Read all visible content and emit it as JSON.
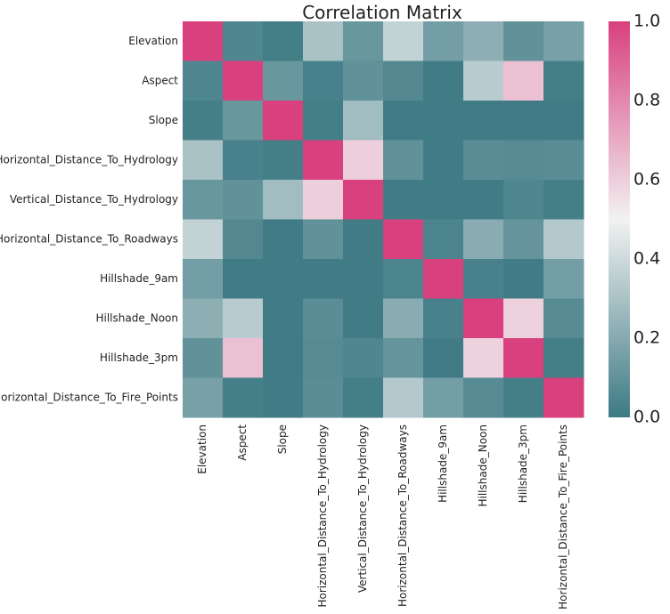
{
  "chart_data": {
    "type": "heatmap",
    "title": "Correlation Matrix",
    "rows": [
      "Elevation",
      "Aspect",
      "Slope",
      "Horizontal_Distance_To_Hydrology",
      "Vertical_Distance_To_Hydrology",
      "Horizontal_Distance_To_Roadways",
      "Hillshade_9am",
      "Hillshade_Noon",
      "Hillshade_3pm",
      "Horizontal_Distance_To_Fire_Points"
    ],
    "columns": [
      "Elevation",
      "Aspect",
      "Slope",
      "Horizontal_Distance_To_Hydrology",
      "Vertical_Distance_To_Hydrology",
      "Horizontal_Distance_To_Roadways",
      "Hillshade_9am",
      "Hillshade_Noon",
      "Hillshade_3pm",
      "Horizontal_Distance_To_Fire_Points"
    ],
    "values": [
      [
        1.0,
        0.05,
        0.02,
        0.3,
        0.12,
        0.37,
        0.15,
        0.22,
        0.1,
        0.16
      ],
      [
        0.05,
        1.0,
        0.12,
        0.03,
        0.1,
        0.06,
        0.01,
        0.34,
        0.64,
        0.02
      ],
      [
        0.02,
        0.12,
        1.0,
        0.02,
        0.28,
        0.01,
        0.01,
        0.01,
        0.01,
        0.01
      ],
      [
        0.3,
        0.03,
        0.02,
        1.0,
        0.6,
        0.1,
        0.01,
        0.08,
        0.07,
        0.08
      ],
      [
        0.12,
        0.1,
        0.28,
        0.6,
        1.0,
        0.01,
        0.01,
        0.01,
        0.05,
        0.02
      ],
      [
        0.37,
        0.06,
        0.01,
        0.1,
        0.01,
        1.0,
        0.04,
        0.21,
        0.11,
        0.33
      ],
      [
        0.15,
        0.01,
        0.01,
        0.01,
        0.01,
        0.04,
        1.0,
        0.03,
        0.01,
        0.15
      ],
      [
        0.22,
        0.34,
        0.01,
        0.08,
        0.01,
        0.21,
        0.03,
        1.0,
        0.59,
        0.07
      ],
      [
        0.1,
        0.64,
        0.01,
        0.07,
        0.05,
        0.11,
        0.01,
        0.59,
        1.0,
        0.02
      ],
      [
        0.16,
        0.02,
        0.01,
        0.08,
        0.02,
        0.33,
        0.15,
        0.07,
        0.02,
        1.0
      ]
    ],
    "vmin": 0.0,
    "vmax": 1.0,
    "colorbar_ticks": [
      "0.0",
      "0.2",
      "0.4",
      "0.6",
      "0.8",
      "1.0"
    ],
    "colormap": {
      "low": "#3d7a84",
      "mid": "#f2f2f2",
      "high": "#d8407e"
    },
    "grid": false,
    "legend": "colorbar-right"
  }
}
